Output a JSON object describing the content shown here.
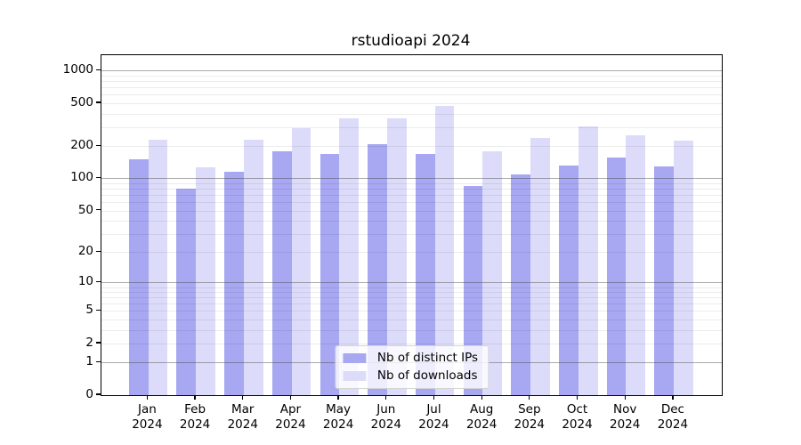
{
  "chart_data": {
    "type": "bar",
    "title": "rstudioapi 2024",
    "xlabel": "",
    "ylabel": "",
    "categories": [
      "Jan",
      "Feb",
      "Mar",
      "Apr",
      "May",
      "Jun",
      "Jul",
      "Aug",
      "Sep",
      "Oct",
      "Nov",
      "Dec"
    ],
    "category_year": "2024",
    "series": [
      {
        "name": "Nb of distinct IPs",
        "color": "#a7a7f2",
        "values": [
          150,
          80,
          115,
          180,
          170,
          210,
          170,
          85,
          110,
          132,
          157,
          130
        ]
      },
      {
        "name": "Nb of downloads",
        "color": "#dcdcfa",
        "values": [
          230,
          128,
          230,
          295,
          360,
          360,
          475,
          180,
          240,
          305,
          250,
          226
        ]
      }
    ],
    "y_scale": "log1p",
    "ylim": [
      0,
      1410
    ],
    "y_ticks": [
      1000,
      500,
      200,
      100,
      50,
      20,
      10,
      5,
      2,
      1,
      0
    ],
    "grid": true,
    "grid_major": [
      1,
      10,
      100,
      1000
    ],
    "grid_minor": [
      2,
      3,
      4,
      5,
      6,
      7,
      8,
      9,
      20,
      30,
      40,
      50,
      60,
      70,
      80,
      90,
      200,
      300,
      400,
      500,
      600,
      700,
      800,
      900
    ],
    "legend_position": "lower center"
  },
  "colors": {
    "background": "#ffffff",
    "frame": "#000000",
    "bar_distinct_ips": "#a7a7f2",
    "bar_downloads": "#dcdcfa",
    "grid_major": "#a0a0a0",
    "grid_minor": "#ececec"
  }
}
